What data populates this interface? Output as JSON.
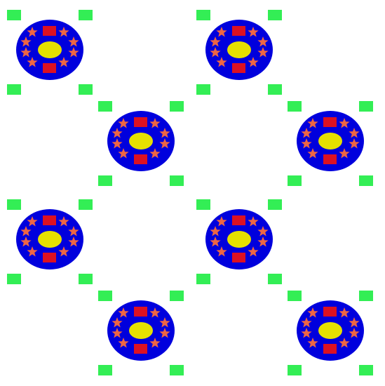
{
  "pattern": {
    "colors": {
      "background": "#ffffff",
      "disc": "#0000dd",
      "stars": "#ee6644",
      "squares": "#dd1122",
      "center_oval": "#e5e000",
      "corner_tiles": "#33ee55"
    },
    "motif": {
      "stars_per_disc": 8,
      "red_squares_per_disc": 2,
      "center_ovals_per_disc": 1,
      "corner_tiles_per_motif": 4
    },
    "grid": {
      "rows": 4,
      "motifs_per_row": 2,
      "total_motifs": 8
    }
  }
}
